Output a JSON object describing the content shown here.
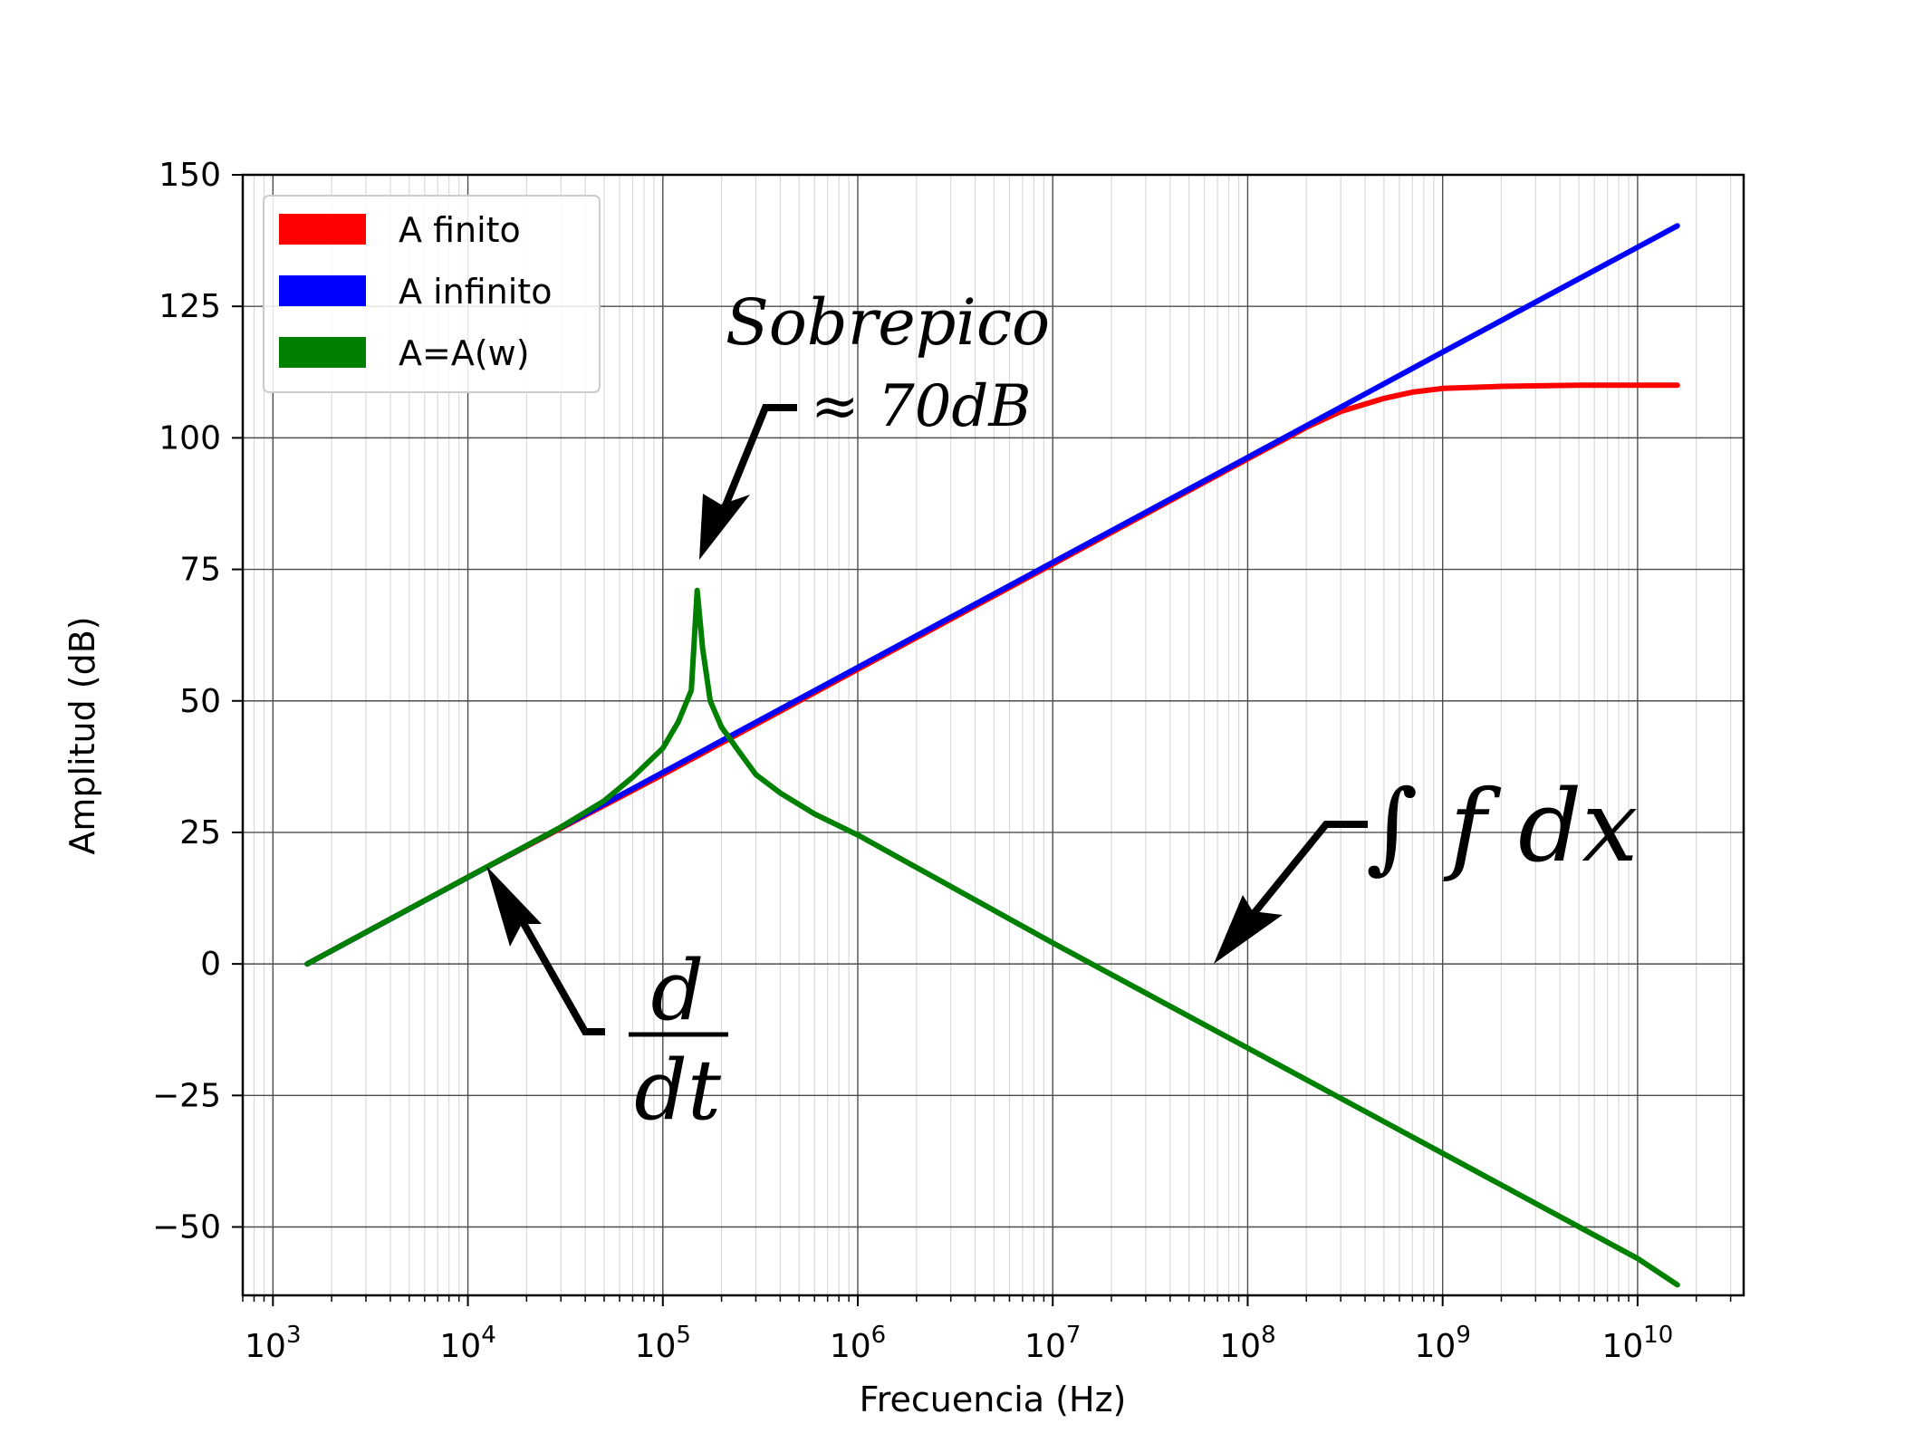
{
  "chart_data": {
    "type": "line",
    "xlabel": "Frecuencia (Hz)",
    "ylabel": "Amplitud (dB)",
    "xscale": "log",
    "xlim": [
      700,
      35000000000
    ],
    "ylim": [
      -63,
      150
    ],
    "grid": true,
    "legend_position": "top-left",
    "x_ticks": [
      {
        "value": 1000,
        "base": "10",
        "exp": "3"
      },
      {
        "value": 10000,
        "base": "10",
        "exp": "4"
      },
      {
        "value": 100000,
        "base": "10",
        "exp": "5"
      },
      {
        "value": 1000000,
        "base": "10",
        "exp": "6"
      },
      {
        "value": 10000000,
        "base": "10",
        "exp": "7"
      },
      {
        "value": 100000000,
        "base": "10",
        "exp": "8"
      },
      {
        "value": 1000000000,
        "base": "10",
        "exp": "9"
      },
      {
        "value": 10000000000,
        "base": "10",
        "exp": "10"
      }
    ],
    "y_ticks": [
      {
        "value": -50,
        "label": "−50"
      },
      {
        "value": -25,
        "label": "−25"
      },
      {
        "value": 0,
        "label": "0"
      },
      {
        "value": 25,
        "label": "25"
      },
      {
        "value": 50,
        "label": "50"
      },
      {
        "value": 75,
        "label": "75"
      },
      {
        "value": 100,
        "label": "100"
      },
      {
        "value": 125,
        "label": "125"
      },
      {
        "value": 150,
        "label": "150"
      }
    ],
    "series": [
      {
        "name": "A finito",
        "color": "#ff0000",
        "points": [
          [
            1500,
            0
          ],
          [
            10000,
            16.5
          ],
          [
            100000,
            36
          ],
          [
            1000000,
            56
          ],
          [
            10000000,
            76
          ],
          [
            100000000,
            96
          ],
          [
            150000000,
            99.5
          ],
          [
            200000000,
            102
          ],
          [
            300000000,
            105
          ],
          [
            500000000,
            107.5
          ],
          [
            700000000,
            108.7
          ],
          [
            1000000000,
            109.4
          ],
          [
            2000000000,
            109.8
          ],
          [
            5000000000,
            110
          ],
          [
            16000000000,
            110
          ]
        ]
      },
      {
        "name": "A infinito",
        "color": "#0000ff",
        "points": [
          [
            1500,
            0
          ],
          [
            100000000,
            96.3
          ],
          [
            1000000000,
            116.3
          ],
          [
            16000000000,
            140.3
          ]
        ]
      },
      {
        "name": "A=A(w)",
        "color": "#008000",
        "points": [
          [
            1500,
            0
          ],
          [
            10000,
            16.5
          ],
          [
            30000,
            26
          ],
          [
            50000,
            31
          ],
          [
            70000,
            35.5
          ],
          [
            100000,
            41
          ],
          [
            120000,
            46
          ],
          [
            140000,
            52
          ],
          [
            150000,
            71
          ],
          [
            160000,
            60
          ],
          [
            175000,
            50
          ],
          [
            200000,
            45
          ],
          [
            250000,
            40
          ],
          [
            300000,
            36
          ],
          [
            400000,
            32.5
          ],
          [
            600000,
            28.5
          ],
          [
            1000000,
            24.5
          ],
          [
            10000000,
            4
          ],
          [
            100000000,
            -16
          ],
          [
            1000000000,
            -36
          ],
          [
            10000000000,
            -56
          ],
          [
            16000000000,
            -61
          ]
        ]
      }
    ],
    "annotations": {
      "sobrepico_line1": "Sobrepico",
      "sobrepico_line2": "≈ 70dB",
      "integral": "∫ f dx",
      "derivative_num": "d",
      "derivative_den": "dt"
    }
  }
}
